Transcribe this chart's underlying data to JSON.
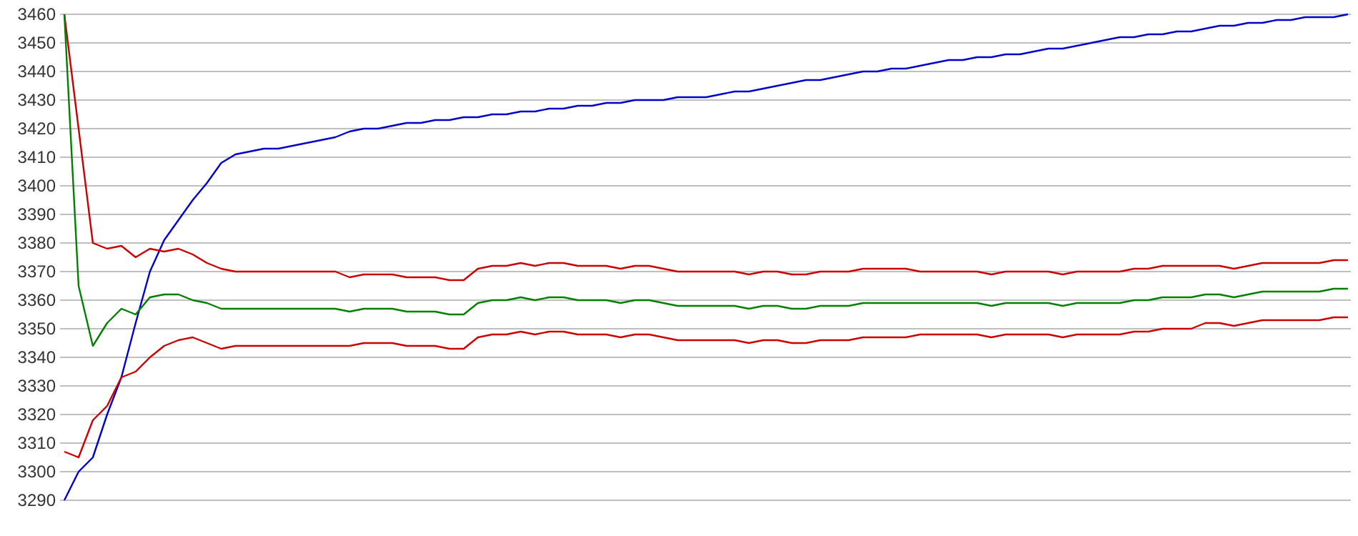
{
  "chart_data": {
    "type": "line",
    "categories": [
      null,
      null,
      null,
      null,
      null,
      null,
      null,
      null,
      null,
      null,
      null,
      null,
      null,
      null,
      null,
      null,
      null,
      null,
      null,
      null,
      null,
      null,
      null,
      null,
      null,
      null,
      null,
      null,
      null,
      null,
      null,
      null,
      null,
      null,
      null,
      null,
      null,
      null,
      null,
      null,
      null,
      null,
      null,
      null,
      null,
      null,
      null,
      null,
      null,
      null,
      null,
      null,
      null,
      null,
      null,
      null,
      null,
      null,
      null,
      null,
      null,
      null,
      null,
      null,
      null,
      null,
      null,
      null,
      null,
      null,
      null,
      null,
      null,
      null,
      null,
      null,
      null,
      null,
      null,
      null,
      null,
      null,
      null,
      null,
      null,
      null,
      null,
      null,
      null,
      null,
      null
    ],
    "ylim": [
      3290,
      3460
    ],
    "yticks": [
      3290,
      3300,
      3310,
      3320,
      3330,
      3340,
      3350,
      3360,
      3370,
      3380,
      3390,
      3400,
      3410,
      3420,
      3430,
      3440,
      3450,
      3460
    ],
    "grid": "y",
    "tick_labels": "y",
    "marker": "none",
    "line_style": "solid",
    "series": [
      {
        "color": "#0000cc",
        "values": [
          3290,
          3300,
          3305,
          3320,
          3333,
          3352,
          3370,
          3381,
          3388,
          3395,
          3401,
          3408,
          3411,
          3412,
          3413,
          3413,
          3414,
          3415,
          3416,
          3417,
          3419,
          3420,
          3420,
          3421,
          3422,
          3422,
          3423,
          3423,
          3424,
          3424,
          3425,
          3425,
          3426,
          3426,
          3427,
          3427,
          3428,
          3428,
          3429,
          3429,
          3430,
          3430,
          3430,
          3431,
          3431,
          3431,
          3432,
          3433,
          3433,
          3434,
          3435,
          3436,
          3437,
          3437,
          3438,
          3439,
          3440,
          3440,
          3441,
          3441,
          3442,
          3443,
          3444,
          3444,
          3445,
          3445,
          3446,
          3446,
          3447,
          3448,
          3448,
          3449,
          3450,
          3451,
          3452,
          3452,
          3453,
          3453,
          3454,
          3454,
          3455,
          3456,
          3456,
          3457,
          3457,
          3458,
          3458,
          3459,
          3459,
          3459,
          3460
        ]
      },
      {
        "color": "#cc0000",
        "values": [
          3460,
          3420,
          3380,
          3378,
          3379,
          3375,
          3378,
          3377,
          3378,
          3376,
          3373,
          3371,
          3370,
          3370,
          3370,
          3370,
          3370,
          3370,
          3370,
          3370,
          3368,
          3369,
          3369,
          3369,
          3368,
          3368,
          3368,
          3367,
          3367,
          3371,
          3372,
          3372,
          3373,
          3372,
          3373,
          3373,
          3372,
          3372,
          3372,
          3371,
          3372,
          3372,
          3371,
          3370,
          3370,
          3370,
          3370,
          3370,
          3369,
          3370,
          3370,
          3369,
          3369,
          3370,
          3370,
          3370,
          3371,
          3371,
          3371,
          3371,
          3370,
          3370,
          3370,
          3370,
          3370,
          3369,
          3370,
          3370,
          3370,
          3370,
          3369,
          3370,
          3370,
          3370,
          3370,
          3371,
          3371,
          3372,
          3372,
          3372,
          3372,
          3372,
          3371,
          3372,
          3373,
          3373,
          3373,
          3373,
          3373,
          3374,
          3374
        ]
      },
      {
        "color": "#008000",
        "values": [
          3460,
          3365,
          3344,
          3352,
          3357,
          3355,
          3361,
          3362,
          3362,
          3360,
          3359,
          3357,
          3357,
          3357,
          3357,
          3357,
          3357,
          3357,
          3357,
          3357,
          3356,
          3357,
          3357,
          3357,
          3356,
          3356,
          3356,
          3355,
          3355,
          3359,
          3360,
          3360,
          3361,
          3360,
          3361,
          3361,
          3360,
          3360,
          3360,
          3359,
          3360,
          3360,
          3359,
          3358,
          3358,
          3358,
          3358,
          3358,
          3357,
          3358,
          3358,
          3357,
          3357,
          3358,
          3358,
          3358,
          3359,
          3359,
          3359,
          3359,
          3359,
          3359,
          3359,
          3359,
          3359,
          3358,
          3359,
          3359,
          3359,
          3359,
          3358,
          3359,
          3359,
          3359,
          3359,
          3360,
          3360,
          3361,
          3361,
          3361,
          3362,
          3362,
          3361,
          3362,
          3363,
          3363,
          3363,
          3363,
          3363,
          3364,
          3364
        ]
      },
      {
        "color": "#cc0000",
        "values": [
          3307,
          3305,
          3318,
          3323,
          3333,
          3335,
          3340,
          3344,
          3346,
          3347,
          3345,
          3343,
          3344,
          3344,
          3344,
          3344,
          3344,
          3344,
          3344,
          3344,
          3344,
          3345,
          3345,
          3345,
          3344,
          3344,
          3344,
          3343,
          3343,
          3347,
          3348,
          3348,
          3349,
          3348,
          3349,
          3349,
          3348,
          3348,
          3348,
          3347,
          3348,
          3348,
          3347,
          3346,
          3346,
          3346,
          3346,
          3346,
          3345,
          3346,
          3346,
          3345,
          3345,
          3346,
          3346,
          3346,
          3347,
          3347,
          3347,
          3347,
          3348,
          3348,
          3348,
          3348,
          3348,
          3347,
          3348,
          3348,
          3348,
          3348,
          3347,
          3348,
          3348,
          3348,
          3348,
          3349,
          3349,
          3350,
          3350,
          3350,
          3352,
          3352,
          3351,
          3352,
          3353,
          3353,
          3353,
          3353,
          3353,
          3354,
          3354
        ]
      }
    ]
  }
}
